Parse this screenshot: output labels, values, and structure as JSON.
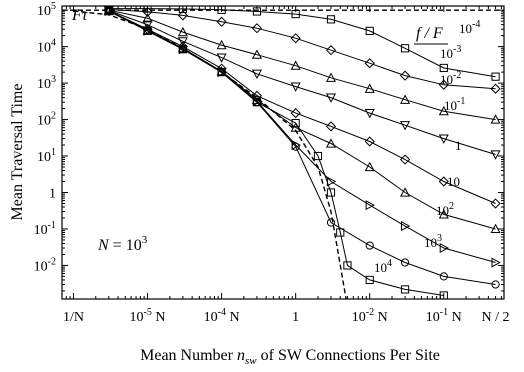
{
  "chart_data": {
    "type": "scatter",
    "title": "",
    "xlabel": "Mean Number n_sw of SW Connections Per Site",
    "xlabel_parts": {
      "pre": "Mean Number ",
      "var": "n",
      "sub": "sw",
      "post": " of SW Connections Per Site"
    },
    "ylabel": "Mean Traversal Time",
    "ylabel_inner": "Fτ",
    "x_scale": "log",
    "y_scale": "log",
    "xlim": [
      0.0007,
      650
    ],
    "ylim": [
      0.0012,
      130000
    ],
    "x_ticks": [
      {
        "value": 0.001,
        "label": "1/N"
      },
      {
        "value": 0.01,
        "label": "10^-5 N"
      },
      {
        "value": 0.1,
        "label": "10^-4 N"
      },
      {
        "value": 1,
        "label": "1"
      },
      {
        "value": 10,
        "label": "10^-2 N"
      },
      {
        "value": 100,
        "label": "10^-1 N"
      },
      {
        "value": 500,
        "label": "N / 2"
      }
    ],
    "y_ticks": [
      {
        "value": 100000,
        "label": "10^5"
      },
      {
        "value": 10000,
        "label": "10^4"
      },
      {
        "value": 1000,
        "label": "10^3"
      },
      {
        "value": 100,
        "label": "10^2"
      },
      {
        "value": 10,
        "label": "10^1"
      },
      {
        "value": 1,
        "label": "1"
      },
      {
        "value": 0.1,
        "label": "10^-1"
      },
      {
        "value": 0.01,
        "label": "10^-2"
      }
    ],
    "annotation": "N = 10^3",
    "legend_title": "f / F",
    "legend_placement": "right-end-of-curves",
    "reference_line": {
      "y": 100000,
      "style": "dashed"
    },
    "limit_curve": {
      "style": "dashed",
      "x": [
        0.001,
        0.003,
        0.01,
        0.03,
        0.1,
        0.3,
        1,
        2,
        3,
        4,
        4.8
      ],
      "y": [
        95000,
        75000,
        30000,
        9000,
        2000,
        400,
        50,
        5,
        0.3,
        0.01,
        0.0012
      ]
    },
    "series": [
      {
        "name": "10^-4",
        "marker": "square",
        "x": [
          0.003,
          0.01,
          0.03,
          0.1,
          0.3,
          1,
          3,
          10,
          30,
          100,
          500
        ],
        "y": [
          110000,
          110000,
          108000,
          102000,
          92000,
          78000,
          56000,
          27000,
          9000,
          2600,
          1500
        ]
      },
      {
        "name": "10^-3",
        "marker": "diamond",
        "x": [
          0.003,
          0.01,
          0.03,
          0.1,
          0.3,
          1,
          3,
          10,
          30,
          100,
          500
        ],
        "y": [
          105000,
          90000,
          72000,
          48000,
          32000,
          17000,
          8000,
          3500,
          1600,
          900,
          700
        ]
      },
      {
        "name": "10^-2",
        "marker": "triangle-up",
        "x": [
          0.003,
          0.01,
          0.03,
          0.1,
          0.3,
          1,
          3,
          10,
          30,
          100,
          500
        ],
        "y": [
          100000,
          60000,
          25000,
          11000,
          6000,
          3000,
          1400,
          700,
          350,
          170,
          100
        ]
      },
      {
        "name": "10^-1",
        "marker": "triangle-down",
        "x": [
          0.003,
          0.01,
          0.03,
          0.1,
          0.3,
          1,
          3,
          10,
          30,
          100,
          500
        ],
        "y": [
          98000,
          40000,
          14000,
          5000,
          1800,
          800,
          400,
          150,
          70,
          30,
          11
        ]
      },
      {
        "name": "1",
        "marker": "diamond",
        "x": [
          0.003,
          0.01,
          0.03,
          0.1,
          0.3,
          1,
          3,
          10,
          30,
          100,
          500
        ],
        "y": [
          96000,
          30000,
          10000,
          2500,
          450,
          150,
          65,
          25,
          8,
          2,
          0.5
        ]
      },
      {
        "name": "10",
        "marker": "triangle-up",
        "x": [
          0.003,
          0.01,
          0.03,
          0.1,
          0.3,
          1,
          3,
          10,
          30,
          100,
          500
        ],
        "y": [
          95000,
          28000,
          9000,
          2100,
          350,
          60,
          22,
          5,
          1,
          0.25,
          0.1
        ]
      },
      {
        "name": "10^2",
        "marker": "triangle-right",
        "x": [
          0.003,
          0.01,
          0.03,
          0.1,
          0.3,
          1,
          3,
          10,
          30,
          100,
          500
        ],
        "y": [
          95000,
          27000,
          8500,
          2000,
          320,
          20,
          2,
          0.45,
          0.12,
          0.03,
          0.012
        ]
      },
      {
        "name": "10^3",
        "marker": "circle",
        "x": [
          0.003,
          0.01,
          0.03,
          0.1,
          0.3,
          1,
          3,
          10,
          30,
          100,
          500
        ],
        "y": [
          95000,
          27000,
          8500,
          2000,
          300,
          18,
          0.15,
          0.035,
          0.012,
          0.005,
          0.003
        ]
      },
      {
        "name": "10^4",
        "marker": "square",
        "x": [
          0.003,
          0.01,
          0.03,
          0.1,
          0.3,
          1,
          2,
          3,
          4,
          5,
          10,
          30,
          100
        ],
        "y": [
          95000,
          27000,
          8500,
          2000,
          300,
          80,
          10,
          1,
          0.08,
          0.01,
          0.004,
          0.0022,
          0.0015
        ]
      }
    ]
  }
}
